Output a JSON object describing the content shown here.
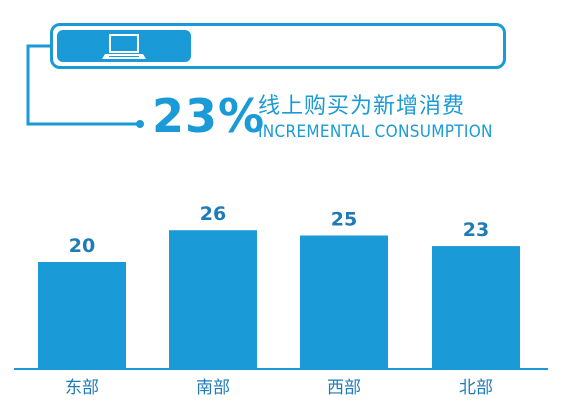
{
  "colors": {
    "accent": "#1a9ad6",
    "label": "#1f7bb8"
  },
  "icon": "laptop-icon",
  "headline": {
    "percent": "23%",
    "cn": "线上购买为新增消费",
    "en": "INCREMENTAL CONSUMPTION"
  },
  "chart_data": {
    "type": "bar",
    "categories": [
      "东部",
      "南部",
      "西部",
      "北部"
    ],
    "values": [
      20,
      26,
      25,
      23
    ],
    "title": "",
    "xlabel": "",
    "ylabel": "",
    "ylim": [
      0,
      30
    ],
    "grid": false,
    "legend": "none"
  }
}
